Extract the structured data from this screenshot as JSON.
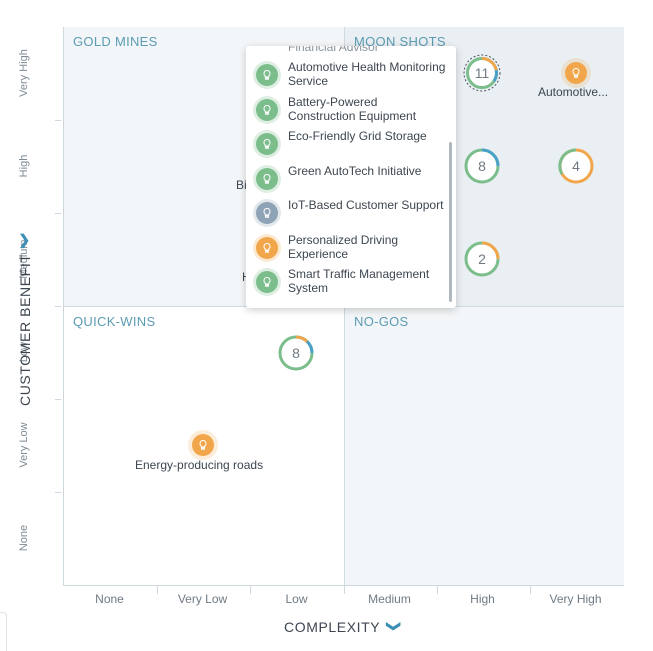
{
  "quadrants": {
    "gold_mines": "GOLD MINES",
    "moon_shots": "MOON SHOTS",
    "quick_wins": "QUICK-WINS",
    "no_gos": "NO-GOS"
  },
  "y_axis": {
    "title": "CUSTOMER BENEFIT",
    "ticks": [
      "Very High",
      "High",
      "Medium",
      "Low",
      "Very Low",
      "None"
    ]
  },
  "x_axis": {
    "title": "COMPLEXITY",
    "ticks": [
      "None",
      "Very Low",
      "Low",
      "Medium",
      "High",
      "Very High"
    ]
  },
  "clusters": [
    {
      "count": "11",
      "x": "High",
      "y": "Very High"
    },
    {
      "count": "8",
      "x": "High",
      "y": "High"
    },
    {
      "count": "4",
      "x": "Very High",
      "y": "High"
    },
    {
      "count": "2",
      "x": "High",
      "y": "Medium"
    },
    {
      "count": "8",
      "x": "Low",
      "y": "Low"
    }
  ],
  "pins": {
    "automotive": {
      "label": "Automotive...",
      "icon": "lightbulb-icon",
      "color": "#f2a64b"
    },
    "energy_roads": {
      "label": "Energy-producing roads",
      "icon": "lightbulb-icon",
      "color": "#f2a64b"
    }
  },
  "partial_labels": {
    "bi": "Bi",
    "h": "H"
  },
  "dropdown": {
    "partial_top": "Financial Advisor",
    "items": [
      {
        "label": "Automotive Health Monitoring Service",
        "color": "green"
      },
      {
        "label": "Battery-Powered Construction Equipment",
        "color": "green"
      },
      {
        "label": "Eco-Friendly Grid Storage",
        "color": "green"
      },
      {
        "label": "Green AutoTech Initiative",
        "color": "green"
      },
      {
        "label": "IoT-Based Customer Support",
        "color": "slate"
      },
      {
        "label": "Personalized Driving Experience",
        "color": "orange"
      },
      {
        "label": "Smart Traffic Management System",
        "color": "green"
      }
    ]
  },
  "chevron": "❯",
  "colors": {
    "accent": "#5b9bb3",
    "orange": "#f2a64b",
    "green": "#7cbd8c",
    "blue": "#4aa0c8",
    "slate": "#8ea3b5"
  }
}
